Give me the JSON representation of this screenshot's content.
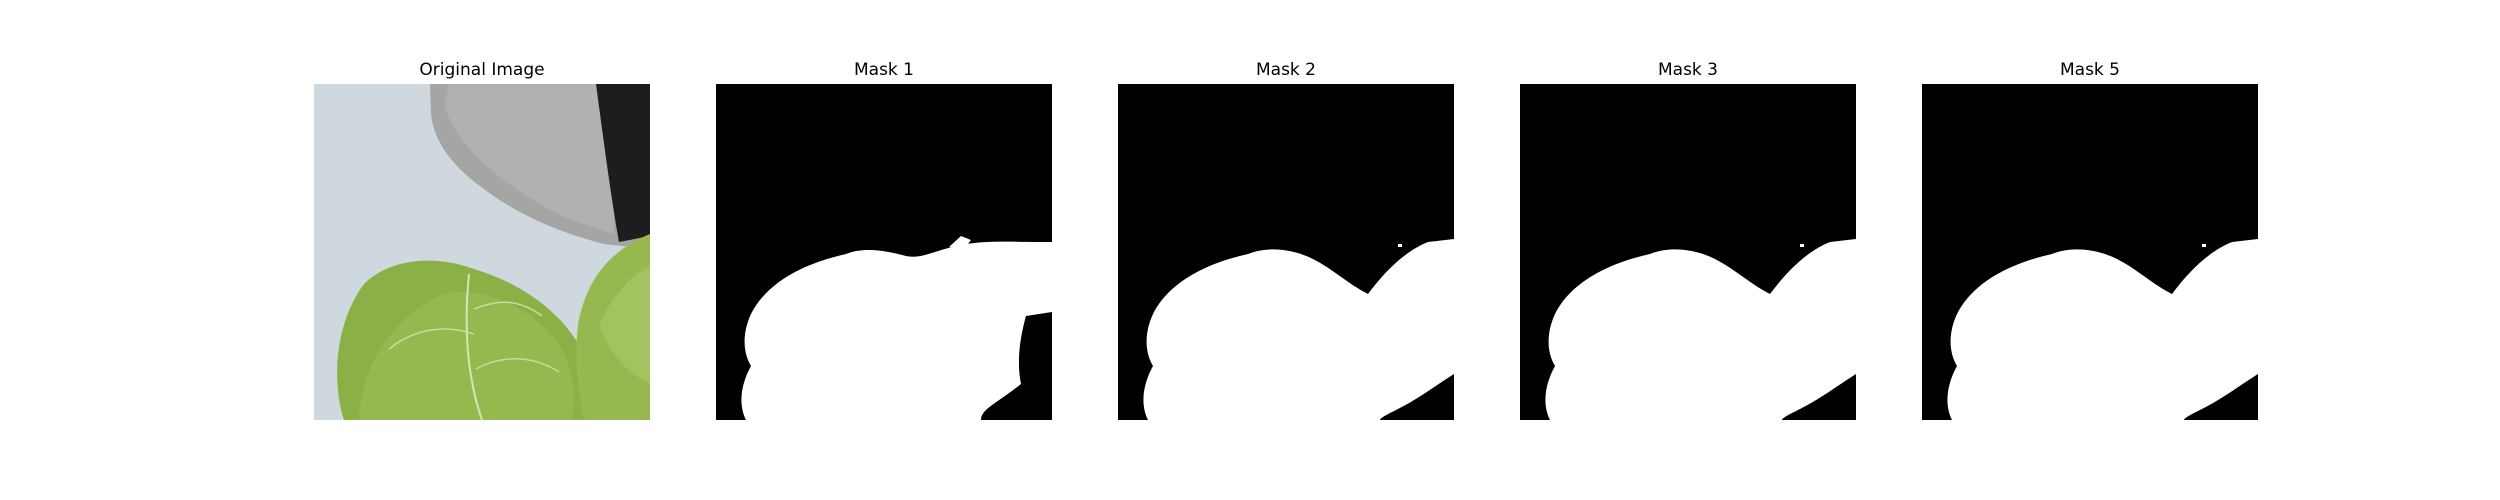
{
  "figure": {
    "panels": [
      {
        "title": "Original Image"
      },
      {
        "title": "Mask 1"
      },
      {
        "title": "Mask 2"
      },
      {
        "title": "Mask 3"
      },
      {
        "title": "Mask 5"
      }
    ]
  },
  "colors": {
    "background": "#ffffff",
    "mask_background": "#000000",
    "mask_foreground": "#ffffff",
    "wall": "#c8d3da",
    "pot": "#a7a7a5",
    "pot_rim": "#1b1b1d",
    "leaf": "#8db04a",
    "leaf_dark": "#6f9530",
    "vein": "#d8e6b7"
  }
}
